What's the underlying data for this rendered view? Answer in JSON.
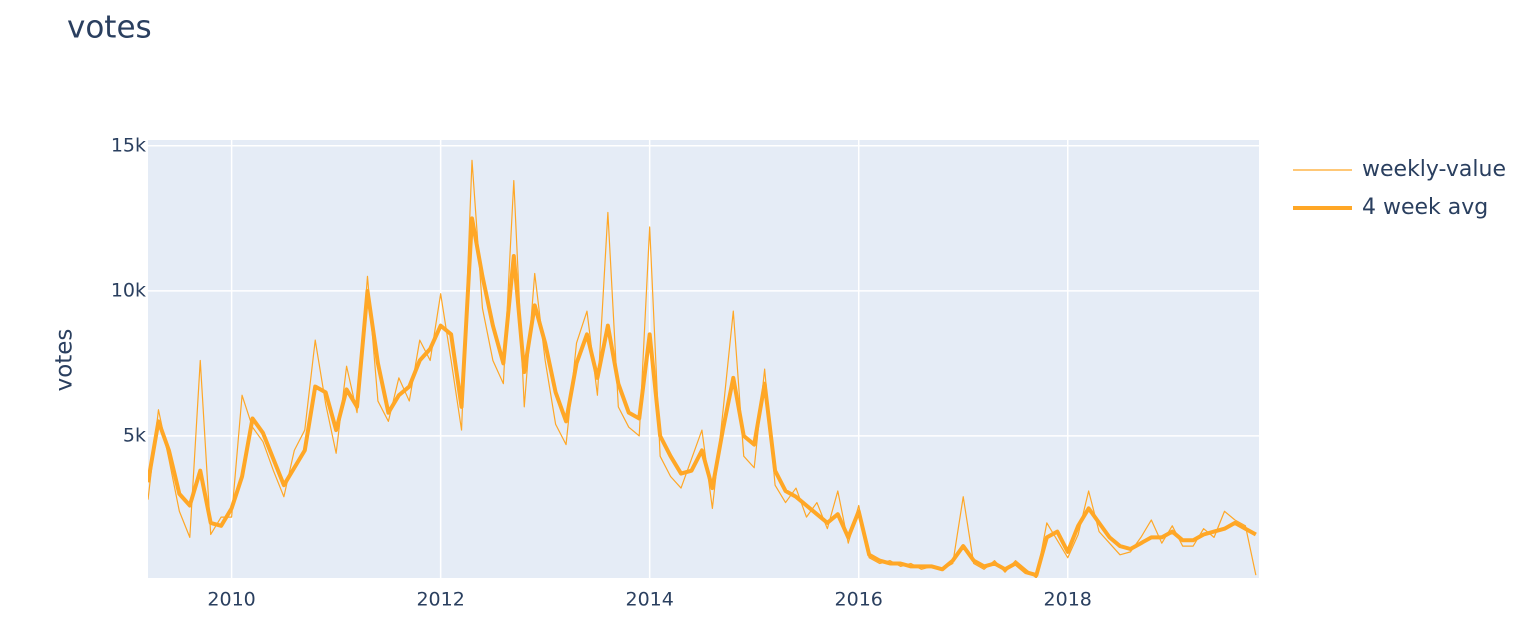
{
  "chart_data": {
    "type": "line",
    "title": "votes",
    "y_label": "votes",
    "grid": true,
    "legend": "top-right",
    "xlim": [
      2009.2,
      2019.83
    ],
    "ylim": [
      100,
      15200
    ],
    "xticks": [
      2010,
      2012,
      2014,
      2016,
      2018
    ],
    "yticks": [
      {
        "value": 5000,
        "label": "5k"
      },
      {
        "value": 10000,
        "label": "10k"
      },
      {
        "value": 15000,
        "label": "15k"
      }
    ],
    "x": [
      2009.2,
      2009.3,
      2009.4,
      2009.5,
      2009.6,
      2009.7,
      2009.8,
      2009.9,
      2010.0,
      2010.1,
      2010.2,
      2010.3,
      2010.4,
      2010.5,
      2010.6,
      2010.7,
      2010.8,
      2010.9,
      2011.0,
      2011.1,
      2011.2,
      2011.3,
      2011.4,
      2011.5,
      2011.6,
      2011.7,
      2011.8,
      2011.9,
      2012.0,
      2012.1,
      2012.2,
      2012.3,
      2012.4,
      2012.5,
      2012.6,
      2012.7,
      2012.8,
      2012.9,
      2013.0,
      2013.1,
      2013.2,
      2013.3,
      2013.4,
      2013.5,
      2013.6,
      2013.7,
      2013.8,
      2013.9,
      2014.0,
      2014.1,
      2014.2,
      2014.3,
      2014.4,
      2014.5,
      2014.6,
      2014.7,
      2014.8,
      2014.9,
      2015.0,
      2015.1,
      2015.2,
      2015.3,
      2015.4,
      2015.5,
      2015.6,
      2015.7,
      2015.8,
      2015.9,
      2016.0,
      2016.1,
      2016.2,
      2016.3,
      2016.4,
      2016.5,
      2016.6,
      2016.7,
      2016.8,
      2016.9,
      2017.0,
      2017.1,
      2017.2,
      2017.3,
      2017.4,
      2017.5,
      2017.6,
      2017.7,
      2017.8,
      2017.9,
      2018.0,
      2018.1,
      2018.2,
      2018.3,
      2018.4,
      2018.5,
      2018.6,
      2018.7,
      2018.8,
      2018.9,
      2019.0,
      2019.1,
      2019.2,
      2019.3,
      2019.4,
      2019.5,
      2019.6,
      2019.7,
      2019.8
    ],
    "series": [
      {
        "name": "weekly-value",
        "color": "#ffa726",
        "width": 1.2,
        "values": [
          2800,
          5900,
          4200,
          2400,
          1500,
          7600,
          1600,
          2200,
          2200,
          6400,
          5300,
          4800,
          3800,
          2900,
          4500,
          5200,
          8300,
          6100,
          4400,
          7400,
          5800,
          10500,
          6200,
          5500,
          7000,
          6200,
          8300,
          7600,
          9900,
          7600,
          5200,
          14500,
          9400,
          7600,
          6800,
          13800,
          6000,
          10600,
          7600,
          5400,
          4700,
          8200,
          9300,
          6400,
          12700,
          6000,
          5300,
          5000,
          12200,
          4300,
          3600,
          3200,
          4200,
          5200,
          2500,
          5800,
          9300,
          4300,
          3900,
          7300,
          3300,
          2700,
          3200,
          2200,
          2700,
          1800,
          3100,
          1300,
          2600,
          800,
          600,
          700,
          500,
          600,
          400,
          500,
          400,
          600,
          2900,
          600,
          400,
          700,
          300,
          700,
          400,
          100,
          2000,
          1400,
          800,
          1600,
          3100,
          1700,
          1300,
          900,
          1000,
          1500,
          2100,
          1300,
          1900,
          1200,
          1200,
          1800,
          1500,
          2400,
          2100,
          1900,
          200
        ]
      },
      {
        "name": "4 week avg",
        "color": "#ffa726",
        "width": 4,
        "values": [
          3400,
          5500,
          4500,
          3000,
          2600,
          3800,
          2000,
          1900,
          2500,
          3600,
          5600,
          5100,
          4200,
          3300,
          3900,
          4500,
          6700,
          6500,
          5200,
          6600,
          6000,
          10000,
          7500,
          5800,
          6400,
          6700,
          7600,
          8000,
          8800,
          8500,
          6000,
          12500,
          10500,
          8800,
          7500,
          11200,
          7200,
          9500,
          8200,
          6500,
          5500,
          7500,
          8500,
          7000,
          8800,
          6800,
          5800,
          5600,
          8500,
          5000,
          4300,
          3700,
          3800,
          4500,
          3200,
          5200,
          7000,
          5000,
          4700,
          6800,
          3800,
          3100,
          2900,
          2600,
          2300,
          2000,
          2300,
          1500,
          2400,
          900,
          700,
          600,
          600,
          500,
          500,
          500,
          400,
          700,
          1200,
          700,
          500,
          600,
          400,
          600,
          300,
          200,
          1500,
          1700,
          1000,
          1900,
          2500,
          2000,
          1500,
          1200,
          1100,
          1300,
          1500,
          1500,
          1700,
          1400,
          1400,
          1600,
          1700,
          1800,
          2000,
          1800,
          1600
        ]
      }
    ]
  }
}
